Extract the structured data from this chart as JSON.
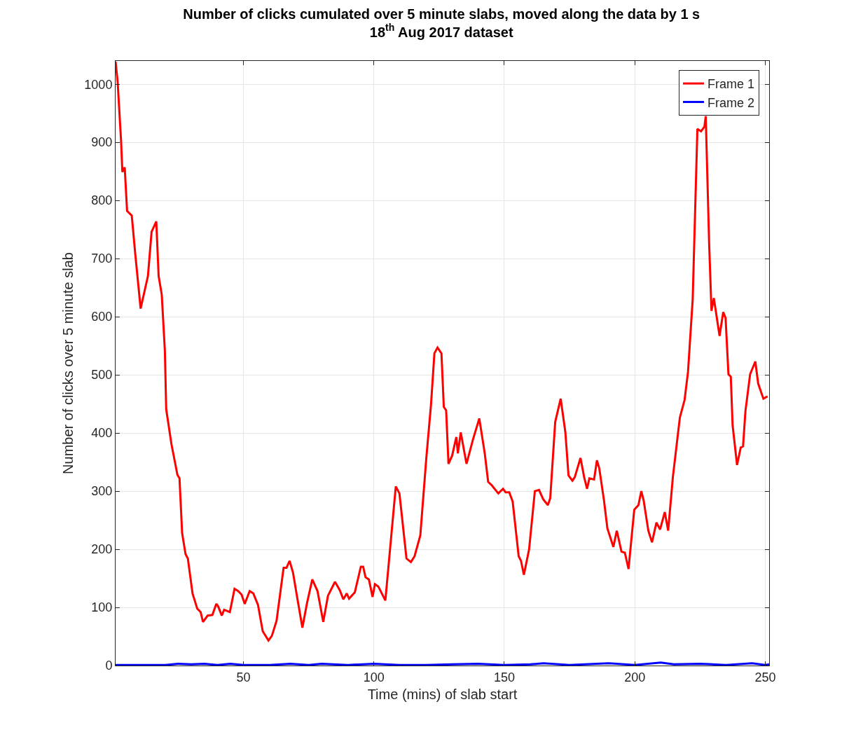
{
  "chart_data": {
    "type": "line",
    "title": "Number of clicks cumulated over 5 minute slabs, moved along the data by 1 s",
    "subtitle": "18$^{th}$ Aug 2017 dataset",
    "xlabel": "Time (mins) of slab start",
    "ylabel": "Number of clicks over 5 minute slab",
    "series": [
      {
        "name": "Frame 1",
        "color": "#ff0000",
        "x": [
          1,
          1.8,
          3.1,
          3.6,
          4.5,
          5.4,
          7.2,
          8.5,
          10.6,
          13.4,
          14.8,
          16.6,
          17.5,
          18.7,
          19.9,
          20.4,
          22.4,
          24.7,
          25.5,
          26.5,
          27.8,
          28.7,
          30.5,
          32.3,
          33.6,
          34.5,
          36.3,
          38.1,
          39.6,
          40.3,
          41.7,
          42.6,
          44.8,
          46.6,
          48.0,
          49.3,
          50.5,
          52.4,
          53.8,
          55.6,
          57.4,
          59.6,
          60.9,
          62.7,
          65.4,
          66.5,
          67.7,
          69.0,
          70.8,
          72.6,
          74.4,
          76.4,
          78.4,
          80.6,
          82.4,
          85.1,
          86.9,
          88.3,
          89.6,
          90.5,
          92.7,
          95.0,
          95.9,
          96.8,
          98.1,
          99.5,
          100.4,
          101.7,
          104.4,
          108.4,
          109.8,
          112.5,
          114.2,
          115.6,
          117.8,
          120.1,
          121.9,
          123.2,
          124.4,
          125.9,
          126.8,
          127.7,
          128.6,
          130.0,
          131.6,
          132.2,
          133.3,
          135.5,
          138.0,
          140.4,
          142.5,
          143.8,
          145.2,
          147.7,
          149.5,
          150.5,
          151.9,
          153.2,
          155.5,
          156.4,
          157.5,
          159.5,
          161.7,
          163.3,
          164.9,
          166.7,
          167.6,
          169.5,
          171.6,
          173.4,
          174.6,
          176.1,
          177.0,
          179.2,
          180.6,
          181.7,
          182.6,
          184.4,
          185.5,
          186.4,
          188.2,
          189.5,
          191.8,
          193.1,
          194.9,
          196.2,
          197.6,
          199.8,
          201.4,
          202.5,
          203.4,
          205.2,
          206.6,
          208.3,
          209.7,
          211.5,
          212.8,
          214.6,
          216.4,
          217.3,
          219.1,
          220.4,
          222.2,
          224.0,
          225.4,
          226.7,
          227.2,
          228.5,
          229.4,
          230.3,
          232.5,
          233.9,
          234.8,
          235.9,
          236.8,
          237.5,
          239.2,
          240.6,
          241.5,
          242.4,
          244.2,
          246.2,
          247.3,
          249.3,
          250.9
        ],
        "values": [
          1039,
          1003,
          903,
          849,
          857,
          782,
          774,
          710,
          614,
          670,
          746,
          764,
          670,
          638,
          541,
          441,
          381,
          328,
          322,
          228,
          192,
          184,
          124,
          98,
          92,
          75,
          86,
          87,
          106,
          102,
          86,
          96,
          92,
          132,
          128,
          122,
          106,
          128,
          124,
          104,
          59,
          43,
          51,
          77,
          168,
          168,
          180,
          160,
          112,
          65,
          108,
          148,
          128,
          75,
          120,
          144,
          130,
          114,
          124,
          115,
          126,
          170,
          170,
          152,
          148,
          118,
          140,
          136,
          112,
          308,
          296,
          184,
          178,
          188,
          224,
          357,
          449,
          537,
          547,
          537,
          445,
          439,
          347,
          361,
          393,
          365,
          401,
          347,
          389,
          425,
          365,
          316,
          310,
          296,
          304,
          298,
          298,
          282,
          188,
          180,
          156,
          200,
          300,
          302,
          286,
          276,
          288,
          419,
          459,
          401,
          327,
          318,
          324,
          357,
          324,
          304,
          322,
          320,
          353,
          339,
          284,
          236,
          204,
          232,
          196,
          194,
          166,
          268,
          276,
          300,
          284,
          232,
          212,
          246,
          234,
          264,
          232,
          324,
          393,
          427,
          457,
          505,
          630,
          923,
          919,
          927,
          945,
          726,
          610,
          632,
          567,
          608,
          598,
          501,
          497,
          413,
          345,
          375,
          377,
          437,
          501,
          523,
          485,
          459,
          463
        ]
      },
      {
        "name": "Frame 2",
        "color": "#0000ff",
        "x": [
          1,
          20,
          25,
          30,
          35,
          40,
          45,
          50,
          60,
          68,
          75,
          80,
          90,
          100,
          110,
          120,
          130,
          140,
          150,
          160,
          165,
          175,
          190,
          200,
          210,
          215,
          225,
          235,
          245,
          250,
          251.5
        ],
        "values": [
          1,
          1,
          3,
          2,
          3,
          1,
          3,
          1,
          1,
          3,
          1,
          3,
          1,
          3,
          1,
          1,
          2,
          3,
          1,
          2,
          4,
          1,
          4,
          1,
          5,
          2,
          3,
          1,
          4,
          1,
          2
        ]
      }
    ],
    "xlim": [
      1,
      251.5
    ],
    "ylim": [
      0,
      1040
    ],
    "xticks": [
      50,
      100,
      150,
      200,
      250
    ],
    "yticks": [
      0,
      100,
      200,
      300,
      400,
      500,
      600,
      700,
      800,
      900,
      1000
    ],
    "grid": true,
    "legend": "top right",
    "line_style": "solid",
    "marker": "none"
  }
}
